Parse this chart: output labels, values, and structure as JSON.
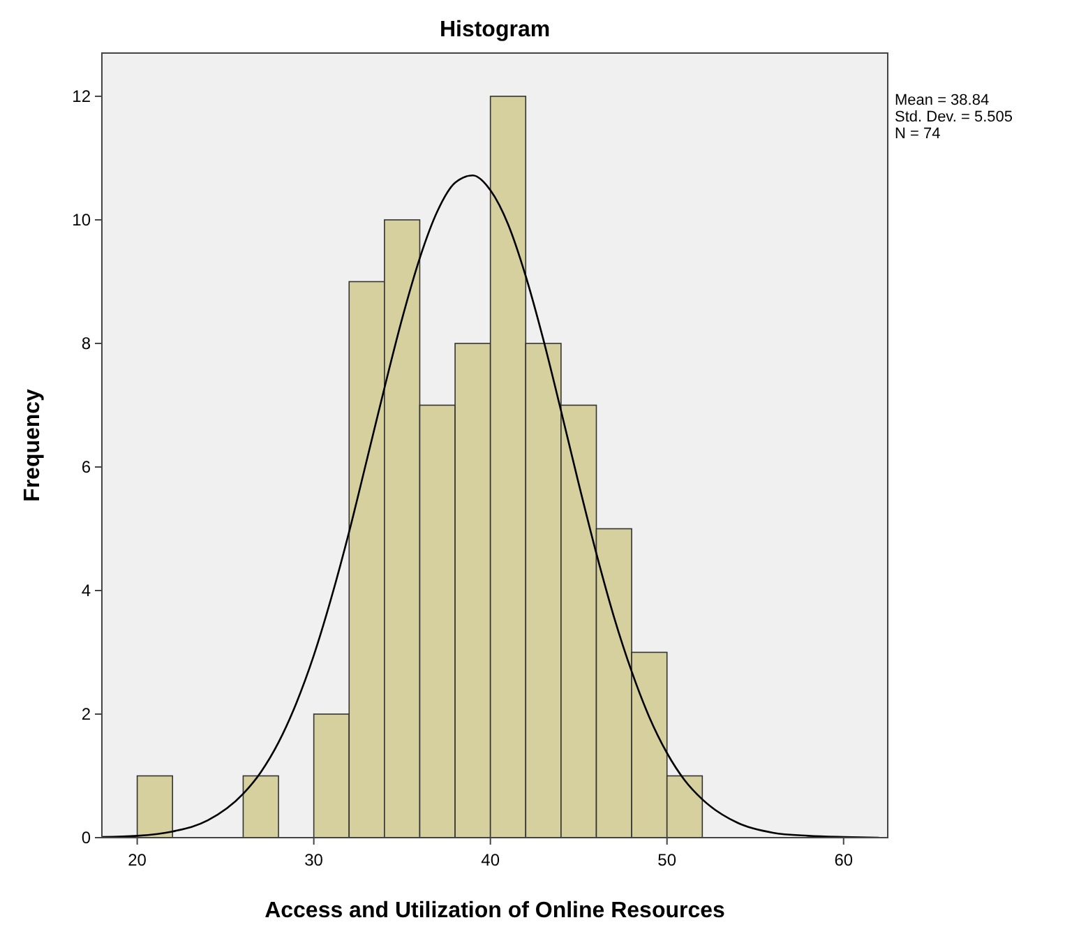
{
  "chart_data": {
    "type": "histogram",
    "title": "Histogram",
    "xlabel": "Access and Utilization of Online Resources",
    "ylabel": "Frequency",
    "annotations": [
      "Mean = 38.84",
      "Std. Dev. = 5.505",
      "N = 74"
    ],
    "bins": [
      20,
      22,
      24,
      26,
      28,
      30,
      32,
      34,
      36,
      38,
      40,
      42,
      44,
      46,
      48,
      50,
      52
    ],
    "series": [
      {
        "color": "#d6d09e",
        "values": [
          1,
          0,
          0,
          1,
          0,
          2,
          9,
          10,
          7,
          8,
          12,
          8,
          7,
          5,
          3,
          1
        ]
      },
      {
        "type": "line",
        "color": "#000000",
        "x": [
          18,
          20,
          22,
          24,
          26,
          27,
          28,
          29,
          30,
          31,
          32,
          33,
          34,
          35,
          36,
          37,
          38,
          39,
          40,
          41,
          42,
          43,
          44,
          45,
          46,
          47,
          48,
          49,
          50,
          51,
          52,
          54,
          56,
          58,
          60,
          62
        ],
        "values": [
          0.01,
          0.03,
          0.1,
          0.28,
          0.71,
          1.06,
          1.54,
          2.17,
          2.95,
          3.89,
          4.95,
          6.11,
          7.28,
          8.4,
          9.38,
          10.14,
          10.6,
          10.72,
          10.48,
          9.93,
          9.09,
          8.06,
          6.91,
          5.73,
          4.6,
          3.57,
          2.69,
          1.95,
          1.37,
          0.93,
          0.62,
          0.24,
          0.08,
          0.03,
          0.01,
          0
        ]
      }
    ],
    "xlim": [
      18,
      62.5
    ],
    "ylim": [
      0,
      12.7
    ],
    "xticks": [
      20,
      30,
      40,
      50,
      60
    ],
    "yticks": [
      0,
      2,
      4,
      6,
      8,
      10,
      12
    ]
  }
}
